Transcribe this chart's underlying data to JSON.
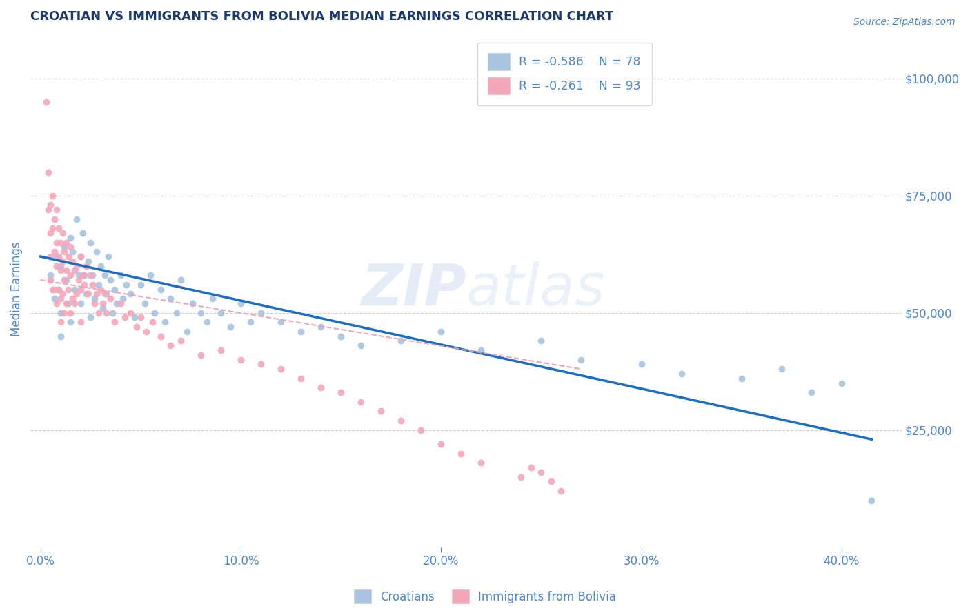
{
  "title": "CROATIAN VS IMMIGRANTS FROM BOLIVIA MEDIAN EARNINGS CORRELATION CHART",
  "source": "Source: ZipAtlas.com",
  "xlabel_ticks": [
    "0.0%",
    "10.0%",
    "20.0%",
    "30.0%",
    "40.0%"
  ],
  "xlabel_vals": [
    0.0,
    0.1,
    0.2,
    0.3,
    0.4
  ],
  "ylabel_ticks": [
    0,
    25000,
    50000,
    75000,
    100000
  ],
  "ylabel_labels": [
    "",
    "$25,000",
    "$50,000",
    "$75,000",
    "$100,000"
  ],
  "xlim": [
    -0.005,
    0.43
  ],
  "ylim": [
    0,
    110000
  ],
  "watermark": "ZIPAtlas",
  "legend_r_blue": "R = -0.586",
  "legend_n_blue": "N = 78",
  "legend_r_pink": "R = -0.261",
  "legend_n_pink": "N = 93",
  "croatian_color": "#a8c4e0",
  "bolivia_color": "#f4a7b9",
  "trend_blue": "#1a6fc4",
  "trend_pink_color": "#e8a0b0",
  "title_color": "#1a3a6b",
  "axis_color": "#4d88cc",
  "grid_color": "#d0d0d0",
  "background_color": "#ffffff",
  "trend_blue_x0": 0.0,
  "trend_blue_y0": 62000,
  "trend_blue_x1": 0.415,
  "trend_blue_y1": 23000,
  "trend_pink_x0": 0.0,
  "trend_pink_y0": 57000,
  "trend_pink_x1": 0.27,
  "trend_pink_y1": 38000,
  "croatian_x": [
    0.005,
    0.007,
    0.008,
    0.009,
    0.01,
    0.01,
    0.01,
    0.012,
    0.013,
    0.014,
    0.015,
    0.015,
    0.016,
    0.017,
    0.018,
    0.019,
    0.02,
    0.02,
    0.021,
    0.022,
    0.023,
    0.024,
    0.025,
    0.025,
    0.026,
    0.027,
    0.028,
    0.029,
    0.03,
    0.031,
    0.032,
    0.033,
    0.034,
    0.035,
    0.036,
    0.037,
    0.038,
    0.04,
    0.041,
    0.043,
    0.045,
    0.047,
    0.05,
    0.052,
    0.055,
    0.057,
    0.06,
    0.062,
    0.065,
    0.068,
    0.07,
    0.073,
    0.076,
    0.08,
    0.083,
    0.086,
    0.09,
    0.095,
    0.1,
    0.105,
    0.11,
    0.12,
    0.13,
    0.14,
    0.15,
    0.16,
    0.18,
    0.2,
    0.22,
    0.25,
    0.27,
    0.3,
    0.32,
    0.35,
    0.37,
    0.385,
    0.4,
    0.415
  ],
  "croatian_y": [
    58000,
    53000,
    62000,
    55000,
    60000,
    50000,
    45000,
    64000,
    57000,
    52000,
    66000,
    48000,
    63000,
    55000,
    70000,
    58000,
    62000,
    52000,
    67000,
    58000,
    54000,
    61000,
    65000,
    49000,
    58000,
    53000,
    63000,
    56000,
    60000,
    51000,
    58000,
    54000,
    62000,
    57000,
    50000,
    55000,
    52000,
    58000,
    53000,
    56000,
    54000,
    49000,
    56000,
    52000,
    58000,
    50000,
    55000,
    48000,
    53000,
    50000,
    57000,
    46000,
    52000,
    50000,
    48000,
    53000,
    50000,
    47000,
    52000,
    48000,
    50000,
    48000,
    46000,
    47000,
    45000,
    43000,
    44000,
    46000,
    42000,
    44000,
    40000,
    39000,
    37000,
    36000,
    38000,
    33000,
    35000,
    10000
  ],
  "bolivia_x": [
    0.003,
    0.004,
    0.004,
    0.005,
    0.005,
    0.005,
    0.005,
    0.006,
    0.006,
    0.006,
    0.007,
    0.007,
    0.007,
    0.008,
    0.008,
    0.008,
    0.008,
    0.009,
    0.009,
    0.009,
    0.01,
    0.01,
    0.01,
    0.01,
    0.011,
    0.011,
    0.011,
    0.012,
    0.012,
    0.012,
    0.013,
    0.013,
    0.013,
    0.014,
    0.014,
    0.015,
    0.015,
    0.015,
    0.016,
    0.016,
    0.017,
    0.017,
    0.018,
    0.018,
    0.019,
    0.02,
    0.02,
    0.02,
    0.021,
    0.022,
    0.023,
    0.024,
    0.025,
    0.026,
    0.027,
    0.028,
    0.029,
    0.03,
    0.031,
    0.032,
    0.033,
    0.035,
    0.037,
    0.04,
    0.042,
    0.045,
    0.048,
    0.05,
    0.053,
    0.056,
    0.06,
    0.065,
    0.07,
    0.08,
    0.09,
    0.1,
    0.11,
    0.12,
    0.13,
    0.14,
    0.15,
    0.16,
    0.17,
    0.18,
    0.19,
    0.2,
    0.21,
    0.22,
    0.24,
    0.245,
    0.25,
    0.255,
    0.26
  ],
  "bolivia_y": [
    95000,
    80000,
    72000,
    73000,
    67000,
    62000,
    57000,
    75000,
    68000,
    55000,
    70000,
    63000,
    55000,
    72000,
    65000,
    60000,
    52000,
    68000,
    62000,
    55000,
    65000,
    59000,
    53000,
    48000,
    67000,
    61000,
    54000,
    63000,
    57000,
    50000,
    65000,
    59000,
    52000,
    62000,
    55000,
    64000,
    58000,
    50000,
    61000,
    53000,
    59000,
    52000,
    60000,
    54000,
    57000,
    62000,
    55000,
    48000,
    58000,
    56000,
    60000,
    54000,
    58000,
    56000,
    52000,
    54000,
    50000,
    55000,
    52000,
    54000,
    50000,
    53000,
    48000,
    52000,
    49000,
    50000,
    47000,
    49000,
    46000,
    48000,
    45000,
    43000,
    44000,
    41000,
    42000,
    40000,
    39000,
    38000,
    36000,
    34000,
    33000,
    31000,
    29000,
    27000,
    25000,
    22000,
    20000,
    18000,
    15000,
    17000,
    16000,
    14000,
    12000
  ]
}
